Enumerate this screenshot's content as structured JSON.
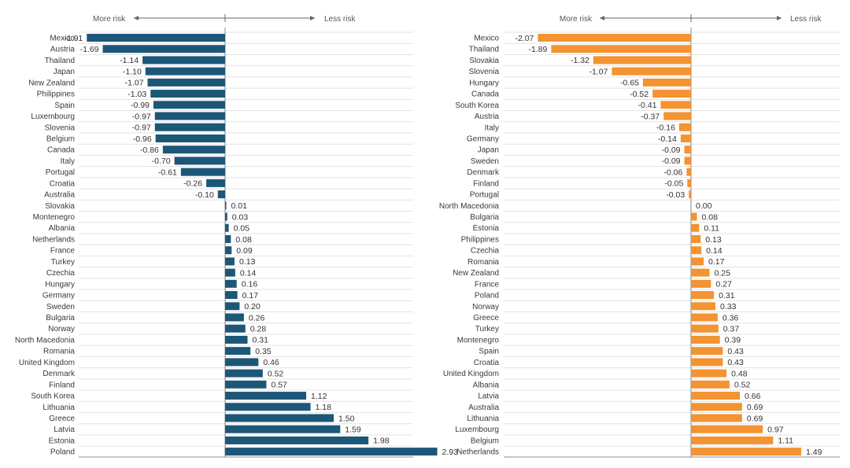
{
  "chart_data": [
    {
      "type": "bar",
      "orientation": "horizontal",
      "title": "",
      "color": "#1d5778",
      "header": {
        "left": "More risk",
        "right": "Less risk"
      },
      "xlim": [
        -2.0,
        3.0
      ],
      "grid": true,
      "categories": [
        "Mexico",
        "Austria",
        "Thailand",
        "Japan",
        "New Zealand",
        "Philippines",
        "Spain",
        "Luxembourg",
        "Slovenia",
        "Belgium",
        "Canada",
        "Italy",
        "Portugal",
        "Croatia",
        "Australia",
        "Slovakia",
        "Montenegro",
        "Albania",
        "Netherlands",
        "France",
        "Turkey",
        "Czechia",
        "Hungary",
        "Germany",
        "Sweden",
        "Bulgaria",
        "Norway",
        "North Macedonia",
        "Romania",
        "United Kingdom",
        "Denmark",
        "Finland",
        "South Korea",
        "Lithuania",
        "Greece",
        "Latvia",
        "Estonia",
        "Poland"
      ],
      "values": [
        -1.91,
        -1.69,
        -1.14,
        -1.1,
        -1.07,
        -1.03,
        -0.99,
        -0.97,
        -0.97,
        -0.96,
        -0.86,
        -0.7,
        -0.61,
        -0.26,
        -0.1,
        0.01,
        0.03,
        0.05,
        0.08,
        0.09,
        0.13,
        0.14,
        0.16,
        0.17,
        0.2,
        0.26,
        0.28,
        0.31,
        0.35,
        0.46,
        0.52,
        0.57,
        1.12,
        1.18,
        1.5,
        1.59,
        1.98,
        2.93
      ]
    },
    {
      "type": "bar",
      "orientation": "horizontal",
      "title": "",
      "color": "#f39332",
      "header": {
        "left": "More risk",
        "right": "Less risk"
      },
      "xlim": [
        -2.2,
        1.6
      ],
      "grid": true,
      "categories": [
        "Mexico",
        "Thailand",
        "Slovakia",
        "Slovenia",
        "Hungary",
        "Canada",
        "South Korea",
        "Austria",
        "Italy",
        "Germany",
        "Japan",
        "Sweden",
        "Denmark",
        "Finland",
        "Portugal",
        "North Macedonia",
        "Bulgaria",
        "Estonia",
        "Philippines",
        "Czechia",
        "Romania",
        "New Zealand",
        "France",
        "Poland",
        "Norway",
        "Greece",
        "Turkey",
        "Montenegro",
        "Spain",
        "Croatia",
        "United Kingdom",
        "Albania",
        "Latvia",
        "Australia",
        "Lithuania",
        "Luxembourg",
        "Belgium",
        "Netherlands"
      ],
      "values": [
        -2.07,
        -1.89,
        -1.32,
        -1.07,
        -0.65,
        -0.52,
        -0.41,
        -0.37,
        -0.16,
        -0.14,
        -0.09,
        -0.09,
        -0.06,
        -0.05,
        -0.03,
        0.0,
        0.08,
        0.11,
        0.13,
        0.14,
        0.17,
        0.25,
        0.27,
        0.31,
        0.33,
        0.36,
        0.37,
        0.39,
        0.43,
        0.43,
        0.48,
        0.52,
        0.66,
        0.69,
        0.69,
        0.97,
        1.11,
        1.49
      ]
    }
  ]
}
